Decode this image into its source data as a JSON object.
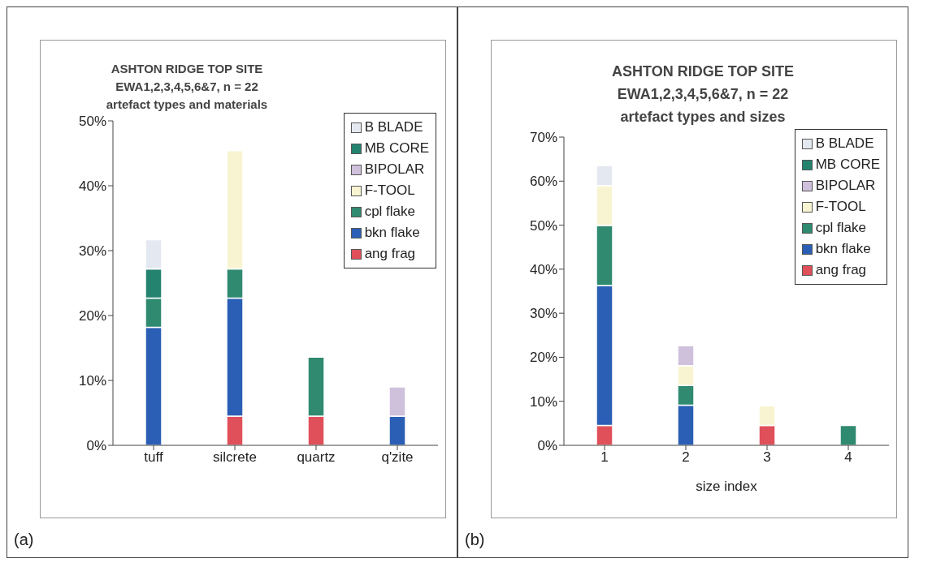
{
  "chart_data": [
    {
      "type": "bar",
      "title": "ASHTON RIDGE TOP SITE\nEWA1,2,3,4,5,6&7, n = 22\nartefact types and materials",
      "categories": [
        "tuff",
        "silcrete",
        "quartz",
        "q'zite"
      ],
      "stacked": true,
      "series": [
        {
          "name": "ang frag",
          "color": "#e0505a",
          "values": [
            null,
            4.5,
            4.5,
            null
          ]
        },
        {
          "name": "bkn flake",
          "color": "#2a5fb5",
          "values": [
            18.2,
            18.2,
            null,
            4.5
          ]
        },
        {
          "name": "cpl flake",
          "color": "#2f8a70",
          "values": [
            4.5,
            4.5,
            9.1,
            null
          ]
        },
        {
          "name": "F-TOOL",
          "color": "#f8f4d2",
          "values": [
            null,
            18.2,
            null,
            null
          ]
        },
        {
          "name": "BIPOLAR",
          "color": "#cfc0dc",
          "values": [
            null,
            null,
            null,
            4.5
          ]
        },
        {
          "name": "MB CORE",
          "color": "#24836f",
          "values": [
            4.5,
            null,
            null,
            null
          ]
        },
        {
          "name": "B BLADE",
          "color": "#e4e8f0",
          "values": [
            4.5,
            null,
            null,
            null
          ]
        }
      ],
      "ylim": [
        0,
        50
      ],
      "yticks": [
        {
          "value": 0,
          "label": "0%"
        },
        {
          "value": 10,
          "label": "10%"
        },
        {
          "value": 20,
          "label": "20%"
        },
        {
          "value": 30,
          "label": "30%"
        },
        {
          "value": 40,
          "label": "40%"
        },
        {
          "value": 50,
          "label": "50%"
        }
      ],
      "legend": "top right",
      "annotations": [
        "(a)"
      ]
    },
    {
      "type": "bar",
      "title": "ASHTON RIDGE TOP SITE\nEWA1,2,3,4,5,6&7, n = 22\nartefact types and sizes",
      "xlabel": "size index",
      "categories": [
        "1",
        "2",
        "3",
        "4"
      ],
      "stacked": true,
      "series": [
        {
          "name": "ang frag",
          "color": "#e0505a",
          "values": [
            4.5,
            null,
            4.5,
            null
          ]
        },
        {
          "name": "bkn flake",
          "color": "#2a5fb5",
          "values": [
            31.8,
            9.1,
            null,
            null
          ]
        },
        {
          "name": "cpl flake",
          "color": "#2f8a70",
          "values": [
            13.6,
            4.5,
            null,
            4.5
          ]
        },
        {
          "name": "F-TOOL",
          "color": "#f8f4d2",
          "values": [
            9.1,
            4.5,
            4.5,
            null
          ]
        },
        {
          "name": "BIPOLAR",
          "color": "#cfc0dc",
          "values": [
            null,
            4.5,
            null,
            null
          ]
        },
        {
          "name": "MB CORE",
          "color": "#24836f",
          "values": [
            null,
            null,
            null,
            null
          ]
        },
        {
          "name": "B BLADE",
          "color": "#e4e8f0",
          "values": [
            4.5,
            null,
            null,
            null
          ]
        }
      ],
      "ylim": [
        0,
        70
      ],
      "yticks": [
        {
          "value": 0,
          "label": "0%"
        },
        {
          "value": 10,
          "label": "10%"
        },
        {
          "value": 20,
          "label": "20%"
        },
        {
          "value": 30,
          "label": "30%"
        },
        {
          "value": 40,
          "label": "40%"
        },
        {
          "value": 50,
          "label": "50%"
        },
        {
          "value": 60,
          "label": "60%"
        },
        {
          "value": 70,
          "label": "70%"
        }
      ],
      "legend": "top right",
      "annotations": [
        "(b)"
      ]
    }
  ]
}
